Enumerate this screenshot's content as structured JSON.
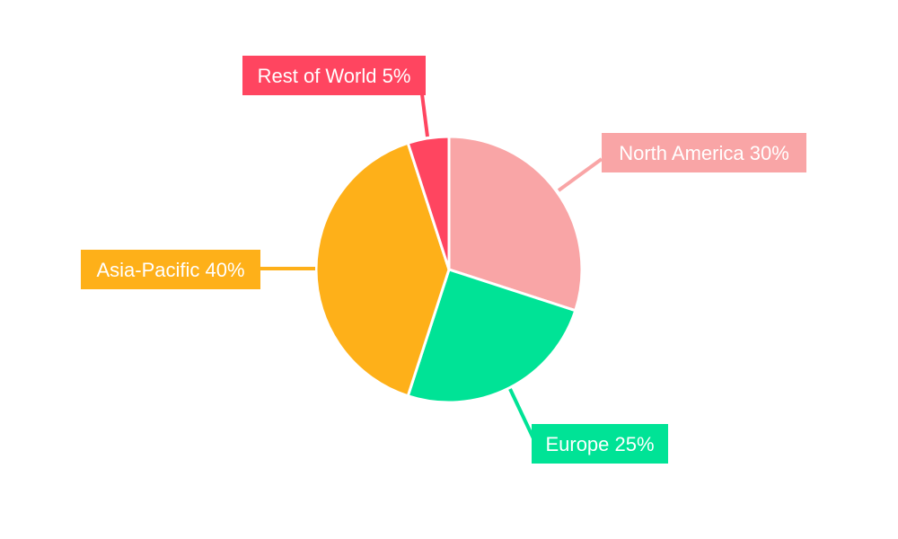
{
  "chart_data": {
    "type": "pie",
    "title": "",
    "categories": [
      "North America",
      "Europe",
      "Asia-Pacific",
      "Rest of World"
    ],
    "values": [
      30,
      25,
      40,
      5
    ],
    "unit": "%",
    "labels": [
      "North America 30%",
      "Europe 25%",
      "Asia-Pacific 40%",
      "Rest of World 5%"
    ],
    "colors": [
      "#F9A5A6",
      "#00E396",
      "#FEB019",
      "#FF4560"
    ],
    "start_angle": "top, clockwise",
    "legend": "none (callout labels)"
  }
}
